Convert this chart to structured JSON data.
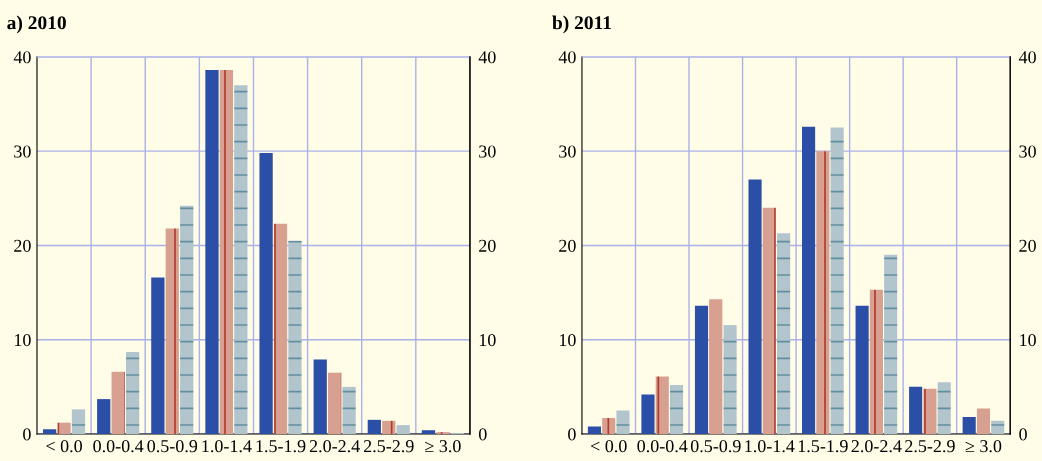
{
  "chart_data": [
    {
      "type": "bar",
      "title": "a) 2010",
      "categories": [
        "< 0.0",
        "0.0-0.4",
        "0.5-0.9",
        "1.0-1.4",
        "1.5-1.9",
        "2.0-2.4",
        "2.5-2.9",
        "≥ 3.0"
      ],
      "series": [
        {
          "color": "#2b4ea6",
          "values": [
            0.5,
            3.7,
            16.6,
            38.6,
            29.8,
            7.9,
            1.5,
            0.4
          ]
        },
        {
          "color": "#d8a090",
          "values": [
            1.2,
            6.6,
            21.8,
            38.6,
            22.3,
            6.5,
            1.4,
            0.2
          ]
        },
        {
          "color": "#b3c5cc",
          "values": [
            2.6,
            8.7,
            24.2,
            37.0,
            20.5,
            5.0,
            0.9,
            0.1
          ]
        }
      ],
      "ylim": [
        0,
        40
      ],
      "yticks": [
        0,
        10,
        20,
        30,
        40
      ],
      "y2lim": [
        0,
        40
      ],
      "y2ticks": [
        0,
        10,
        20,
        30,
        40
      ],
      "grid": true
    },
    {
      "type": "bar",
      "title": "b) 2011",
      "categories": [
        "< 0.0",
        "0.0-0.4",
        "0.5-0.9",
        "1.0-1.4",
        "1.5-1.9",
        "2.0-2.4",
        "2.5-2.9",
        "≥ 3.0"
      ],
      "series": [
        {
          "color": "#2b4ea6",
          "values": [
            0.8,
            4.2,
            13.6,
            27.0,
            32.6,
            13.6,
            5.0,
            1.8
          ]
        },
        {
          "color": "#d8a090",
          "values": [
            1.7,
            6.1,
            14.3,
            24.0,
            30.0,
            15.3,
            4.8,
            2.7
          ]
        },
        {
          "color": "#b3c5cc",
          "values": [
            2.5,
            5.2,
            11.5,
            21.3,
            32.5,
            19.0,
            5.5,
            1.4
          ]
        }
      ],
      "ylim": [
        0,
        40
      ],
      "yticks": [
        0,
        10,
        20,
        30,
        40
      ],
      "y2lim": [
        0,
        40
      ],
      "y2ticks": [
        0,
        10,
        20,
        30,
        40
      ],
      "grid": true
    }
  ]
}
